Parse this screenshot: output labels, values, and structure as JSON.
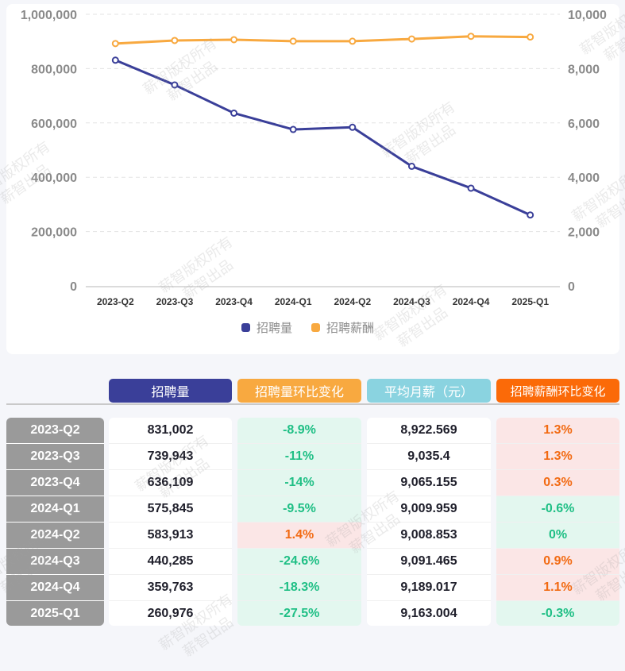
{
  "chart_data": {
    "type": "line",
    "categories": [
      "2023-Q2",
      "2023-Q3",
      "2023-Q4",
      "2024-Q1",
      "2024-Q2",
      "2024-Q3",
      "2024-Q4",
      "2025-Q1"
    ],
    "series": [
      {
        "name": "招聘量",
        "axis": "left",
        "color": "#3a3f99",
        "values": [
          831002,
          739943,
          636109,
          575845,
          583913,
          440285,
          359763,
          260976
        ]
      },
      {
        "name": "招聘薪酬",
        "axis": "right",
        "color": "#f8a940",
        "values": [
          8922.569,
          9035.4,
          9065.155,
          9009.959,
          9008.853,
          9091.465,
          9189.017,
          9163.004
        ]
      }
    ],
    "y_left": {
      "range": [
        0,
        1000000
      ],
      "ticks": [
        "0",
        "200,000",
        "400,000",
        "600,000",
        "800,000",
        "1,000,000"
      ],
      "tick_values": [
        0,
        200000,
        400000,
        600000,
        800000,
        1000000
      ]
    },
    "y_right": {
      "range": [
        0,
        10000
      ],
      "ticks": [
        "0",
        "2,000",
        "4,000",
        "6,000",
        "8,000",
        "10,000"
      ],
      "tick_values": [
        0,
        2000,
        4000,
        6000,
        8000,
        10000
      ]
    },
    "grid": true,
    "legend_position": "bottom-center",
    "title": "",
    "xlabel": "",
    "ylabel": ""
  },
  "table": {
    "headers": [
      {
        "label": "招聘量",
        "color": "#3a3f99"
      },
      {
        "label": "招聘量环比变化",
        "color": "#f8a940"
      },
      {
        "label": "平均月薪（元）",
        "color": "#8ad3e0"
      },
      {
        "label": "招聘薪酬环比变化",
        "color": "#fb6a08"
      }
    ],
    "rows": [
      {
        "period": "2023-Q2",
        "volume": "831,002",
        "volume_change": "-8.9%",
        "salary": "8,922.569",
        "salary_change": "1.3%"
      },
      {
        "period": "2023-Q3",
        "volume": "739,943",
        "volume_change": "-11%",
        "salary": "9,035.4",
        "salary_change": "1.3%"
      },
      {
        "period": "2023-Q4",
        "volume": "636,109",
        "volume_change": "-14%",
        "salary": "9,065.155",
        "salary_change": "0.3%"
      },
      {
        "period": "2024-Q1",
        "volume": "575,845",
        "volume_change": "-9.5%",
        "salary": "9,009.959",
        "salary_change": "-0.6%"
      },
      {
        "period": "2024-Q2",
        "volume": "583,913",
        "volume_change": "1.4%",
        "salary": "9,008.853",
        "salary_change": "0%"
      },
      {
        "period": "2024-Q3",
        "volume": "440,285",
        "volume_change": "-24.6%",
        "salary": "9,091.465",
        "salary_change": "0.9%"
      },
      {
        "period": "2024-Q4",
        "volume": "359,763",
        "volume_change": "-18.3%",
        "salary": "9,189.017",
        "salary_change": "1.1%"
      },
      {
        "period": "2025-Q1",
        "volume": "260,976",
        "volume_change": "-27.5%",
        "salary": "9,163.004",
        "salary_change": "-0.3%"
      }
    ]
  },
  "watermark": {
    "line1": "薪智版权所有",
    "line2": "薪智出品"
  }
}
